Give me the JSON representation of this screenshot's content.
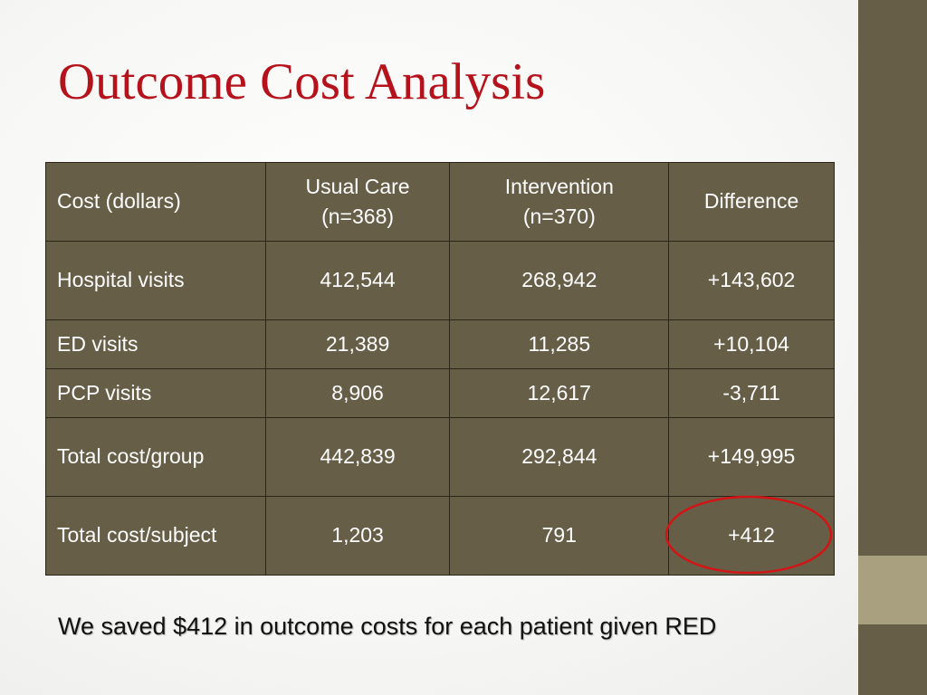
{
  "slide": {
    "title": "Outcome Cost Analysis",
    "summary": "We saved $412 in outcome costs for each patient given RED"
  },
  "table": {
    "headers": {
      "col1": "Cost (dollars)",
      "col2_line1": "Usual Care",
      "col2_line2": "(n=368)",
      "col3_line1": "Intervention",
      "col3_line2": "(n=370)",
      "col4": "Difference"
    },
    "rows": [
      {
        "label": "Hospital visits",
        "usual_care": "412,544",
        "intervention": "268,942",
        "difference": "+143,602"
      },
      {
        "label": "ED visits",
        "usual_care": "21,389",
        "intervention": "11,285",
        "difference": "+10,104"
      },
      {
        "label": "PCP visits",
        "usual_care": "8,906",
        "intervention": "12,617",
        "difference": "-3,711"
      },
      {
        "label": "Total cost/group",
        "usual_care": "442,839",
        "intervention": "292,844",
        "difference": "+149,995"
      },
      {
        "label": "Total cost/subject",
        "usual_care": "1,203",
        "intervention": "791",
        "difference": "+412"
      }
    ]
  },
  "colors": {
    "title": "#b5121b",
    "table_fill": "#675e48",
    "side_bar": "#675e48",
    "side_bar_accent": "#a8a07e",
    "highlight": "#d41414"
  }
}
